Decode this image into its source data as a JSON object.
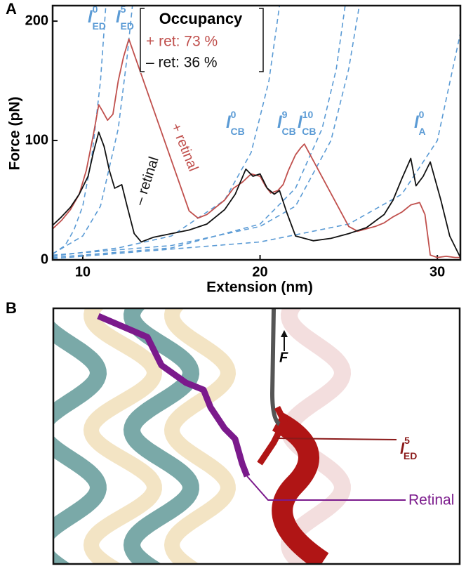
{
  "chart_data": {
    "type": "line",
    "panel_label": "A",
    "x_label": "Extension (nm)",
    "y_label": "Force (pN)",
    "xlim": [
      8.3,
      31.3
    ],
    "ylim": [
      0,
      213
    ],
    "xticks": [
      10,
      20,
      30
    ],
    "yticks": [
      0,
      100,
      200
    ],
    "series": [
      {
        "name": "+ retinal",
        "color": "#c0504d",
        "x": [
          8.3,
          8.8,
          9.3,
          9.8,
          10.2,
          10.6,
          10.9,
          11.1,
          11.4,
          11.7,
          12.0,
          12.3,
          12.6,
          16.0,
          16.5,
          17,
          17.5,
          18,
          18.5,
          19,
          19.5,
          20,
          20.3,
          20.6,
          21,
          21.3,
          21.6,
          22,
          22.3,
          22.5,
          25.0,
          25.5,
          26,
          26.5,
          27,
          27.5,
          28,
          28.5,
          29,
          29.3,
          29.6,
          30,
          30.5,
          31,
          31.3
        ],
        "values": [
          26,
          33,
          42,
          55,
          75,
          105,
          130,
          125,
          117,
          122,
          150,
          170,
          185,
          41,
          35,
          38,
          44,
          50,
          60,
          65,
          72,
          70,
          62,
          56,
          58,
          63,
          75,
          88,
          94,
          97,
          28,
          24,
          26,
          28,
          31,
          36,
          40,
          46,
          48,
          38,
          4,
          2,
          3,
          2,
          2
        ]
      },
      {
        "name": "– retinal",
        "color": "#111111",
        "x": [
          8.3,
          8.8,
          9.3,
          9.8,
          10.3,
          10.6,
          10.9,
          11.2,
          11.5,
          11.8,
          12.2,
          12.5,
          12.9,
          13.3,
          14,
          15,
          16,
          17,
          18,
          18.6,
          19.2,
          19.6,
          20.0,
          20.4,
          20.8,
          21.1,
          21.5,
          22,
          23,
          24,
          25,
          26,
          27,
          27.5,
          28,
          28.5,
          28.8,
          29.2,
          29.6,
          30.2,
          30.7,
          31.3
        ],
        "values": [
          29,
          36,
          44,
          55,
          70,
          90,
          107,
          95,
          75,
          60,
          63,
          45,
          22,
          15,
          19,
          22,
          25,
          30,
          42,
          55,
          76,
          70,
          72,
          60,
          55,
          58,
          40,
          20,
          16,
          18,
          22,
          27,
          38,
          50,
          68,
          85,
          62,
          70,
          82,
          50,
          20,
          2
        ]
      }
    ],
    "fits": [
      {
        "label": {
          "symbol": "l",
          "sup": "0",
          "sub": "ED"
        },
        "x": [
          8.3,
          9,
          9.5,
          10,
          10.5,
          11,
          11.3
        ],
        "values": [
          5,
          12,
          25,
          45,
          85,
          150,
          213
        ]
      },
      {
        "label": {
          "symbol": "l",
          "sup": "5",
          "sub": "ED"
        },
        "x": [
          8.3,
          10,
          11,
          12,
          12.5,
          12.8
        ],
        "values": [
          5,
          20,
          45,
          110,
          170,
          213
        ]
      },
      {
        "label": {
          "symbol": "l",
          "sup": "0",
          "sub": "CB"
        },
        "x": [
          8.3,
          12,
          15,
          18,
          19.5,
          20.5,
          21.1
        ],
        "values": [
          3,
          10,
          20,
          50,
          90,
          150,
          213
        ]
      },
      {
        "label": {
          "symbol": "l",
          "sup": "9",
          "sub": "CB"
        },
        "x": [
          8.3,
          15,
          20,
          22,
          23.5,
          24.3,
          24.8
        ],
        "values": [
          2,
          10,
          30,
          60,
          110,
          160,
          213
        ]
      },
      {
        "label": {
          "symbol": "l",
          "sup": "10",
          "sub": "CB"
        },
        "x": [
          8.3,
          15,
          20,
          22,
          24,
          25,
          25.6
        ],
        "values": [
          4,
          12,
          28,
          45,
          100,
          160,
          213
        ]
      },
      {
        "label": {
          "symbol": "l",
          "sup": "0",
          "sub": "A"
        },
        "x": [
          8.3,
          20,
          25,
          28,
          30,
          31.3
        ],
        "values": [
          1,
          15,
          30,
          55,
          100,
          190
        ]
      }
    ],
    "fit_color": "#5b9bd5",
    "legend": {
      "title": "Occupancy",
      "entries": [
        "+ ret: 73 %",
        "– ret: 36 %"
      ]
    }
  },
  "panel_b": {
    "panel_label": "B",
    "force_label": "F",
    "helix_label": {
      "symbol": "l",
      "sup": "5",
      "sub": "ED"
    },
    "retinal_label": "Retinal"
  }
}
